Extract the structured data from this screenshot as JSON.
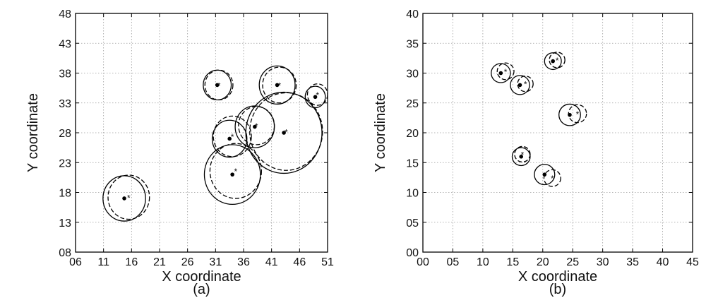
{
  "figure": {
    "background": "#ffffff",
    "grid": true,
    "grid_color": "#9a9a9a",
    "marker_color": "#000000",
    "estimate_marker": "*",
    "true_marker": "dot"
  },
  "chart_data": [
    {
      "type": "scatter",
      "caption": "(a)",
      "xlabel": "X coordinate",
      "ylabel": "Y coordinate",
      "xlim": [
        6,
        51
      ],
      "ylim": [
        8,
        48
      ],
      "xticks": [
        "06",
        "11",
        "16",
        "21",
        "26",
        "31",
        "36",
        "41",
        "46",
        "51"
      ],
      "yticks": [
        "08",
        "13",
        "18",
        "23",
        "28",
        "33",
        "38",
        "43",
        "48"
      ],
      "grid": true,
      "series": [
        {
          "style": "solid",
          "marker": "dot",
          "points": [
            {
              "x": 14.7,
              "y": 17.0,
              "r": 3.8
            },
            {
              "x": 31.3,
              "y": 36.0,
              "r": 2.5
            },
            {
              "x": 42.0,
              "y": 36.0,
              "r": 3.2
            },
            {
              "x": 48.8,
              "y": 34.0,
              "r": 1.8
            },
            {
              "x": 33.5,
              "y": 27.0,
              "r": 3.1
            },
            {
              "x": 38.0,
              "y": 29.0,
              "r": 3.5
            },
            {
              "x": 43.2,
              "y": 28.0,
              "r": 6.8
            },
            {
              "x": 34.0,
              "y": 21.0,
              "r": 5.0
            }
          ]
        },
        {
          "style": "dashed",
          "marker": "star",
          "points": [
            {
              "x": 15.5,
              "y": 17.2,
              "r": 3.7
            },
            {
              "x": 31.6,
              "y": 36.0,
              "r": 2.5
            },
            {
              "x": 42.4,
              "y": 36.0,
              "r": 3.0
            },
            {
              "x": 49.2,
              "y": 34.4,
              "r": 1.8
            },
            {
              "x": 34.0,
              "y": 27.4,
              "r": 3.4
            },
            {
              "x": 38.3,
              "y": 29.2,
              "r": 3.2
            },
            {
              "x": 43.6,
              "y": 28.2,
              "r": 6.5
            },
            {
              "x": 34.6,
              "y": 21.6,
              "r": 4.6
            }
          ]
        }
      ]
    },
    {
      "type": "scatter",
      "caption": "(b)",
      "xlabel": "X coordinate",
      "ylabel": "Y coordinate",
      "xlim": [
        0,
        45
      ],
      "ylim": [
        0,
        40
      ],
      "xticks": [
        "00",
        "05",
        "10",
        "15",
        "20",
        "25",
        "30",
        "35",
        "40",
        "45"
      ],
      "yticks": [
        "00",
        "05",
        "10",
        "15",
        "20",
        "25",
        "30",
        "35",
        "40"
      ],
      "grid": true,
      "series": [
        {
          "style": "solid",
          "marker": "dot",
          "points": [
            {
              "x": 13.0,
              "y": 30.0,
              "r": 1.6
            },
            {
              "x": 16.2,
              "y": 28.0,
              "r": 1.6
            },
            {
              "x": 21.7,
              "y": 32.0,
              "r": 1.4
            },
            {
              "x": 24.5,
              "y": 23.0,
              "r": 1.8
            },
            {
              "x": 16.4,
              "y": 16.0,
              "r": 1.5
            },
            {
              "x": 20.3,
              "y": 13.0,
              "r": 1.7
            }
          ]
        },
        {
          "style": "dashed",
          "marker": "star",
          "points": [
            {
              "x": 13.8,
              "y": 30.3,
              "r": 1.4
            },
            {
              "x": 17.1,
              "y": 28.2,
              "r": 1.3
            },
            {
              "x": 22.4,
              "y": 32.2,
              "r": 1.3
            },
            {
              "x": 25.8,
              "y": 23.2,
              "r": 1.5
            },
            {
              "x": 16.6,
              "y": 16.4,
              "r": 1.3
            },
            {
              "x": 21.6,
              "y": 12.4,
              "r": 1.4
            }
          ]
        }
      ]
    }
  ]
}
